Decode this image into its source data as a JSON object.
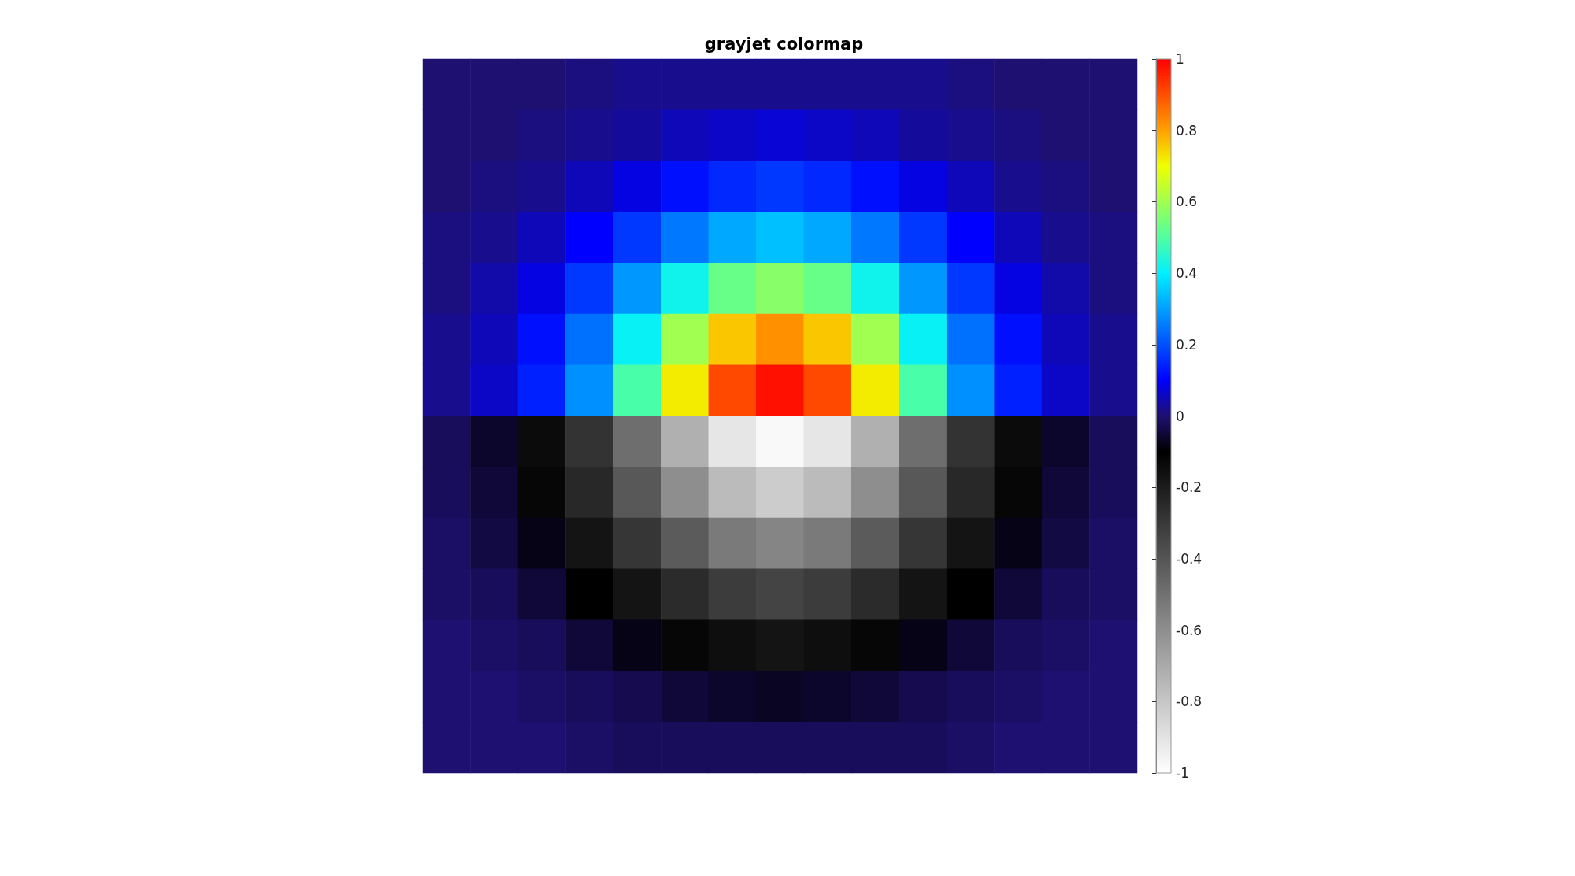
{
  "chart_data": {
    "type": "heatmap",
    "title": "grayjet colormap",
    "categories": [
      null,
      null,
      null,
      null,
      null,
      null,
      null,
      null,
      null,
      null,
      null,
      null,
      null,
      null,
      null
    ],
    "y_categories": [
      null,
      null,
      null,
      null,
      null,
      null,
      null,
      null,
      null,
      null,
      null,
      null,
      null,
      null
    ],
    "cells": [
      [
        0.0,
        0.0,
        0.0,
        0.01,
        0.02,
        0.02,
        0.02,
        0.02,
        0.02,
        0.02,
        0.02,
        0.01,
        0.0,
        0.0,
        0.0
      ],
      [
        0.0,
        0.0,
        0.01,
        0.02,
        0.03,
        0.05,
        0.06,
        0.07,
        0.06,
        0.05,
        0.03,
        0.02,
        0.01,
        0.0,
        0.0
      ],
      [
        0.0,
        0.01,
        0.02,
        0.05,
        0.08,
        0.12,
        0.15,
        0.17,
        0.15,
        0.12,
        0.08,
        0.05,
        0.02,
        0.01,
        0.0
      ],
      [
        0.01,
        0.02,
        0.05,
        0.1,
        0.17,
        0.25,
        0.31,
        0.34,
        0.31,
        0.25,
        0.17,
        0.1,
        0.05,
        0.02,
        0.01
      ],
      [
        0.01,
        0.04,
        0.08,
        0.17,
        0.29,
        0.42,
        0.53,
        0.57,
        0.53,
        0.42,
        0.29,
        0.17,
        0.08,
        0.04,
        0.01
      ],
      [
        0.02,
        0.05,
        0.12,
        0.24,
        0.41,
        0.6,
        0.76,
        0.82,
        0.76,
        0.6,
        0.41,
        0.24,
        0.12,
        0.05,
        0.02
      ],
      [
        0.02,
        0.06,
        0.14,
        0.28,
        0.49,
        0.72,
        0.91,
        0.98,
        0.91,
        0.72,
        0.49,
        0.28,
        0.14,
        0.06,
        0.02
      ],
      [
        -0.02,
        -0.06,
        -0.14,
        -0.28,
        -0.49,
        -0.72,
        -0.91,
        -0.98,
        -0.91,
        -0.72,
        -0.49,
        -0.28,
        -0.14,
        -0.06,
        -0.02
      ],
      [
        -0.02,
        -0.05,
        -0.12,
        -0.24,
        -0.41,
        -0.6,
        -0.76,
        -0.82,
        -0.76,
        -0.6,
        -0.41,
        -0.24,
        -0.12,
        -0.05,
        -0.02
      ],
      [
        -0.01,
        -0.04,
        -0.08,
        -0.17,
        -0.29,
        -0.42,
        -0.53,
        -0.57,
        -0.53,
        -0.42,
        -0.29,
        -0.17,
        -0.08,
        -0.04,
        -0.01
      ],
      [
        -0.01,
        -0.02,
        -0.05,
        -0.1,
        -0.17,
        -0.25,
        -0.31,
        -0.34,
        -0.31,
        -0.25,
        -0.17,
        -0.1,
        -0.05,
        -0.02,
        -0.01
      ],
      [
        0.0,
        -0.01,
        -0.02,
        -0.05,
        -0.08,
        -0.12,
        -0.15,
        -0.17,
        -0.15,
        -0.12,
        -0.08,
        -0.05,
        -0.02,
        -0.01,
        0.0
      ],
      [
        0.0,
        0.0,
        -0.01,
        -0.02,
        -0.03,
        -0.05,
        -0.06,
        -0.07,
        -0.06,
        -0.05,
        -0.03,
        -0.02,
        -0.01,
        0.0,
        0.0
      ],
      [
        0.0,
        0.0,
        0.0,
        -0.01,
        -0.02,
        -0.02,
        -0.02,
        -0.02,
        -0.02,
        -0.02,
        -0.02,
        -0.01,
        0.0,
        0.0,
        0.0
      ]
    ],
    "clim": [
      -1,
      1
    ],
    "cticks": [
      -1,
      -0.8,
      -0.6,
      -0.4,
      -0.2,
      0,
      0.2,
      0.4,
      0.6,
      0.8,
      1
    ]
  }
}
